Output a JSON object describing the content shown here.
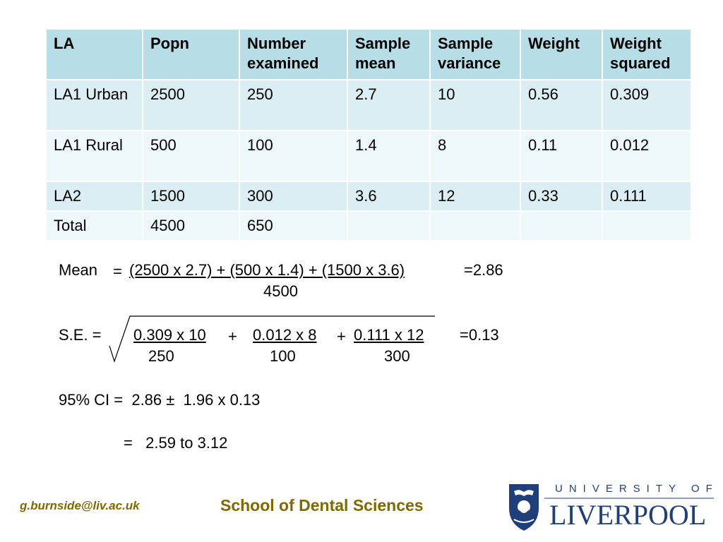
{
  "table": {
    "headers": [
      "LA",
      "Popn",
      "Number examined",
      "Sample mean",
      "Sample variance",
      "Weight",
      "Weight squared"
    ],
    "rows": [
      [
        "LA1 Urban",
        "2500",
        "250",
        "2.7",
        "10",
        "0.56",
        "0.309"
      ],
      [
        "LA1 Rural",
        "500",
        "100",
        "1.4",
        "8",
        "0.11",
        "0.012"
      ],
      [
        "LA2",
        "1500",
        "300",
        "3.6",
        "12",
        "0.33",
        "0.111"
      ],
      [
        "Total",
        "4500",
        "650",
        "",
        "",
        "",
        ""
      ]
    ]
  },
  "mean": {
    "label": "Mean",
    "eq": "=",
    "numerator": "(2500 x 2.7) + (500 x 1.4) + (1500 x 3.6)",
    "result": "=2.86",
    "denominator": "4500"
  },
  "se": {
    "label": "S.E. =",
    "term1_num": "0.309 x 10",
    "plus1": "+",
    "term2_num": "0.012 x 8",
    "plus2": "+",
    "term3_num": "0.111 x 12",
    "result": "=0.13",
    "term1_den": "250",
    "term2_den": "100",
    "term3_den": "300"
  },
  "ci": {
    "line1": "95% CI =  2.86 ±  1.96 x 0.13",
    "line2": "=   2.59 to 3.12"
  },
  "footer": {
    "email": "g.burnside@liv.ac.uk",
    "school": "School of Dental Sciences",
    "university_top": "UNIVERSITY OF",
    "university_name": "LIVERPOOL"
  },
  "colors": {
    "header_bg": "#b7dde6",
    "row_odd_bg": "#dbeef3",
    "row_even_bg": "#eef7f9",
    "footer_text": "#7f6a00",
    "logo_blue": "#1f3f7a"
  }
}
